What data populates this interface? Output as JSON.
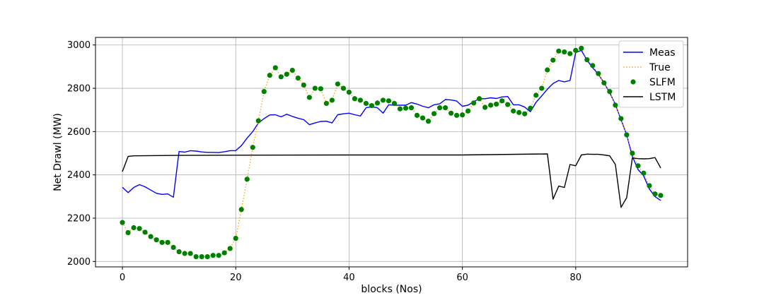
{
  "chart_data": {
    "type": "line",
    "xlabel": "blocks (Nos)",
    "ylabel": "Net Drawl (MW)",
    "xlim": [
      -4.75,
      99.75
    ],
    "ylim": [
      1975,
      3035
    ],
    "xticks": [
      0,
      20,
      40,
      60,
      80
    ],
    "yticks": [
      2000,
      2200,
      2400,
      2600,
      2800,
      3000
    ],
    "grid": true,
    "legend_position": "top-right",
    "series": [
      {
        "name": "Meas",
        "style": "solid-line",
        "color": "#0000ff",
        "x": [
          0,
          1,
          2,
          3,
          4,
          5,
          6,
          7,
          8,
          9,
          10,
          11,
          12,
          13,
          14,
          15,
          16,
          17,
          18,
          19,
          20,
          21,
          22,
          23,
          24,
          25,
          26,
          27,
          28,
          29,
          30,
          31,
          32,
          33,
          34,
          35,
          36,
          37,
          38,
          39,
          40,
          41,
          42,
          43,
          44,
          45,
          46,
          47,
          48,
          49,
          50,
          51,
          52,
          53,
          54,
          55,
          56,
          57,
          58,
          59,
          60,
          61,
          62,
          63,
          64,
          65,
          66,
          67,
          68,
          69,
          70,
          71,
          72,
          73,
          74,
          75,
          76,
          77,
          78,
          79,
          80,
          81,
          82,
          83,
          84,
          85,
          86,
          87,
          88,
          89,
          90,
          91,
          92,
          93,
          94,
          95
        ],
        "y": [
          2343,
          2318,
          2342,
          2355,
          2345,
          2330,
          2315,
          2310,
          2312,
          2297,
          2508,
          2505,
          2512,
          2510,
          2506,
          2504,
          2504,
          2503,
          2507,
          2512,
          2512,
          2535,
          2570,
          2600,
          2640,
          2660,
          2677,
          2678,
          2668,
          2680,
          2670,
          2662,
          2655,
          2632,
          2640,
          2647,
          2648,
          2640,
          2678,
          2682,
          2685,
          2678,
          2672,
          2710,
          2714,
          2710,
          2685,
          2724,
          2722,
          2722,
          2722,
          2734,
          2727,
          2717,
          2710,
          2724,
          2728,
          2748,
          2746,
          2741,
          2717,
          2722,
          2738,
          2752,
          2752,
          2756,
          2753,
          2760,
          2762,
          2724,
          2724,
          2713,
          2692,
          2735,
          2765,
          2796,
          2822,
          2836,
          2830,
          2836,
          2965,
          2975,
          2930,
          2895,
          2865,
          2825,
          2780,
          2725,
          2655,
          2585,
          2485,
          2425,
          2395,
          2335,
          2300,
          2282
        ]
      },
      {
        "name": "True",
        "style": "dotted-line",
        "color": "#ffa500",
        "x": [
          0,
          1,
          2,
          3,
          4,
          5,
          6,
          7,
          8,
          9,
          10,
          11,
          12,
          13,
          14,
          15,
          16,
          17,
          18,
          19,
          20,
          21,
          22,
          23,
          24,
          25,
          26,
          27,
          28,
          29,
          30,
          31,
          32,
          33,
          34,
          35,
          36,
          37,
          38,
          39,
          40,
          41,
          42,
          43,
          44,
          45,
          46,
          47,
          48,
          49,
          50,
          51,
          52,
          53,
          54,
          55,
          56,
          57,
          58,
          59,
          60,
          61,
          62,
          63,
          64,
          65,
          66,
          67,
          68,
          69,
          70,
          71,
          72,
          73,
          74,
          75,
          76,
          77,
          78,
          79,
          80,
          81,
          82,
          83,
          84,
          85,
          86,
          87,
          88,
          89,
          90,
          91,
          92,
          93,
          94,
          95
        ],
        "y": [
          2180,
          2133,
          2156,
          2152,
          2135,
          2115,
          2100,
          2088,
          2088,
          2065,
          2045,
          2037,
          2037,
          2022,
          2022,
          2022,
          2028,
          2028,
          2040,
          2060,
          2107,
          2240,
          2380,
          2527,
          2650,
          2785,
          2860,
          2895,
          2853,
          2865,
          2883,
          2847,
          2815,
          2758,
          2800,
          2798,
          2730,
          2745,
          2820,
          2800,
          2782,
          2752,
          2745,
          2730,
          2720,
          2732,
          2745,
          2742,
          2730,
          2705,
          2708,
          2710,
          2675,
          2663,
          2648,
          2683,
          2710,
          2710,
          2685,
          2675,
          2677,
          2695,
          2732,
          2752,
          2712,
          2722,
          2727,
          2742,
          2725,
          2695,
          2688,
          2682,
          2708,
          2768,
          2800,
          2885,
          2930,
          2972,
          2968,
          2960,
          2975,
          2985,
          2932,
          2905,
          2868,
          2825,
          2785,
          2722,
          2660,
          2585,
          2500,
          2442,
          2408,
          2350,
          2312,
          2305
        ]
      },
      {
        "name": "SLFM",
        "style": "markers",
        "color": "#008000",
        "x": [
          0,
          1,
          2,
          3,
          4,
          5,
          6,
          7,
          8,
          9,
          10,
          11,
          12,
          13,
          14,
          15,
          16,
          17,
          18,
          19,
          20,
          21,
          22,
          23,
          24,
          25,
          26,
          27,
          28,
          29,
          30,
          31,
          32,
          33,
          34,
          35,
          36,
          37,
          38,
          39,
          40,
          41,
          42,
          43,
          44,
          45,
          46,
          47,
          48,
          49,
          50,
          51,
          52,
          53,
          54,
          55,
          56,
          57,
          58,
          59,
          60,
          61,
          62,
          63,
          64,
          65,
          66,
          67,
          68,
          69,
          70,
          71,
          72,
          73,
          74,
          75,
          76,
          77,
          78,
          79,
          80,
          81,
          82,
          83,
          84,
          85,
          86,
          87,
          88,
          89,
          90,
          91,
          92,
          93,
          94,
          95
        ],
        "y": [
          2180,
          2133,
          2156,
          2152,
          2135,
          2115,
          2100,
          2088,
          2088,
          2065,
          2045,
          2037,
          2037,
          2022,
          2022,
          2022,
          2028,
          2028,
          2040,
          2060,
          2107,
          2240,
          2380,
          2527,
          2650,
          2785,
          2860,
          2895,
          2853,
          2865,
          2883,
          2847,
          2815,
          2758,
          2800,
          2798,
          2730,
          2745,
          2820,
          2800,
          2782,
          2752,
          2745,
          2730,
          2720,
          2732,
          2745,
          2742,
          2730,
          2705,
          2708,
          2710,
          2675,
          2663,
          2648,
          2683,
          2710,
          2710,
          2685,
          2675,
          2677,
          2695,
          2732,
          2752,
          2712,
          2722,
          2727,
          2742,
          2725,
          2695,
          2688,
          2682,
          2708,
          2768,
          2800,
          2885,
          2930,
          2972,
          2968,
          2960,
          2975,
          2985,
          2932,
          2905,
          2868,
          2825,
          2785,
          2722,
          2660,
          2585,
          2500,
          2442,
          2408,
          2350,
          2312,
          2305
        ]
      },
      {
        "name": "LSTM",
        "style": "solid-line",
        "color": "#000000",
        "x": [
          0,
          1,
          2,
          10,
          20,
          40,
          60,
          75,
          76,
          77,
          78,
          79,
          80,
          81,
          82,
          83,
          84,
          85,
          86,
          87,
          88,
          89,
          90,
          91,
          92,
          93,
          94,
          95
        ],
        "y": [
          2415,
          2485,
          2488,
          2490,
          2491,
          2492,
          2492,
          2497,
          2288,
          2348,
          2342,
          2448,
          2442,
          2492,
          2496,
          2495,
          2495,
          2492,
          2488,
          2448,
          2250,
          2295,
          2478,
          2475,
          2474,
          2475,
          2480,
          2432
        ]
      }
    ]
  }
}
